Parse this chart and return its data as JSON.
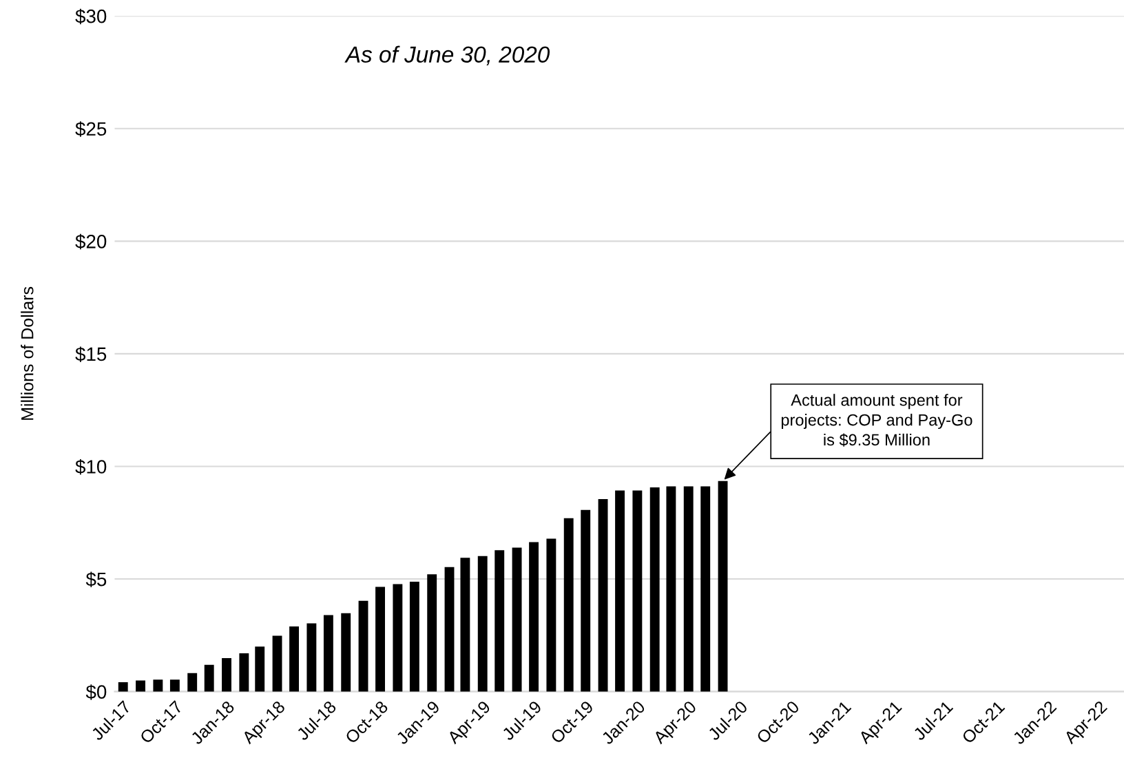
{
  "chart_data": {
    "type": "bar",
    "title": "As of June 30, 2020",
    "ylabel": "Millions of Dollars",
    "x": [
      "2017-07",
      "2017-08",
      "2017-09",
      "2017-10",
      "2017-11",
      "2017-12",
      "2018-01",
      "2018-02",
      "2018-03",
      "2018-04",
      "2018-05",
      "2018-06",
      "2018-07",
      "2018-08",
      "2018-09",
      "2018-10",
      "2018-11",
      "2018-12",
      "2019-01",
      "2019-02",
      "2019-03",
      "2019-04",
      "2019-05",
      "2019-06",
      "2019-07",
      "2019-08",
      "2019-09",
      "2019-10",
      "2019-11",
      "2019-12",
      "2020-01",
      "2020-02",
      "2020-03",
      "2020-04",
      "2020-05",
      "2020-06"
    ],
    "values": [
      0.42,
      0.49,
      0.53,
      0.53,
      0.82,
      1.19,
      1.49,
      1.7,
      2.0,
      2.48,
      2.89,
      3.03,
      3.4,
      3.48,
      4.03,
      4.65,
      4.77,
      4.88,
      5.21,
      5.53,
      5.94,
      6.02,
      6.28,
      6.39,
      6.64,
      6.79,
      7.7,
      8.07,
      8.55,
      8.93,
      8.93,
      9.07,
      9.11,
      9.11,
      9.11,
      9.35
    ],
    "color": "#000000",
    "ylim": [
      0,
      30
    ],
    "yticks": [
      {
        "value": 0,
        "label": "$0"
      },
      {
        "value": 5,
        "label": "$5"
      },
      {
        "value": 10,
        "label": "$10"
      },
      {
        "value": 15,
        "label": "$15"
      },
      {
        "value": 20,
        "label": "$20"
      },
      {
        "value": 25,
        "label": "$25"
      },
      {
        "value": 30,
        "label": "$30"
      }
    ],
    "xlim": [
      "2017-06-16",
      "2022-05-15"
    ],
    "xticks": [
      {
        "value": "2017-07",
        "label": "Jul-17"
      },
      {
        "value": "2017-10",
        "label": "Oct-17"
      },
      {
        "value": "2018-01",
        "label": "Jan-18"
      },
      {
        "value": "2018-04",
        "label": "Apr-18"
      },
      {
        "value": "2018-07",
        "label": "Jul-18"
      },
      {
        "value": "2018-10",
        "label": "Oct-18"
      },
      {
        "value": "2019-01",
        "label": "Jan-19"
      },
      {
        "value": "2019-04",
        "label": "Apr-19"
      },
      {
        "value": "2019-07",
        "label": "Jul-19"
      },
      {
        "value": "2019-10",
        "label": "Oct-19"
      },
      {
        "value": "2020-01",
        "label": "Jan-20"
      },
      {
        "value": "2020-04",
        "label": "Apr-20"
      },
      {
        "value": "2020-07",
        "label": "Jul-20"
      },
      {
        "value": "2020-10",
        "label": "Oct-20"
      },
      {
        "value": "2021-01",
        "label": "Jan-21"
      },
      {
        "value": "2021-04",
        "label": "Apr-21"
      },
      {
        "value": "2021-07",
        "label": "Jul-21"
      },
      {
        "value": "2021-10",
        "label": "Oct-21"
      },
      {
        "value": "2022-01",
        "label": "Jan-22"
      },
      {
        "value": "2022-04",
        "label": "Apr-22"
      }
    ],
    "grid": "y",
    "annotations": [
      {
        "text": "Actual amount spent for\nprojects: COP and Pay-Go\nis $9.35 Million",
        "x": "2020-06",
        "y": 9.35
      }
    ]
  }
}
